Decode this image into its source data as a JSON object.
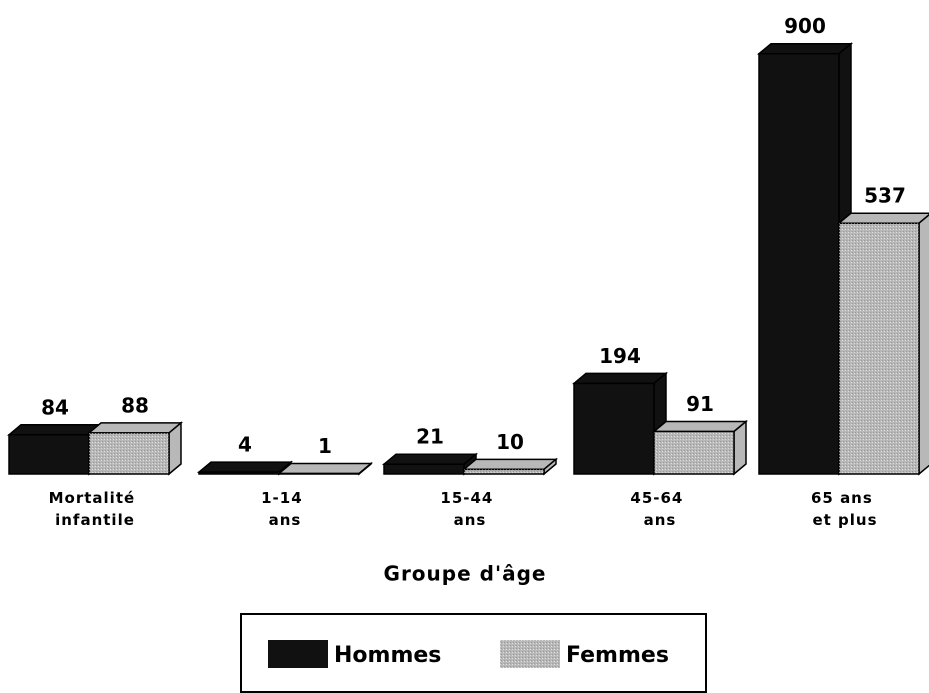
{
  "chart_data": {
    "type": "bar3d",
    "categories": [
      "Mortalité infantile",
      "1-14 ans",
      "15-44 ans",
      "45-64 ans",
      "65 ans et plus"
    ],
    "x_label": "Groupe d'âge",
    "series": [
      {
        "name": "Hommes",
        "color": "#111111",
        "values": [
          84,
          4,
          21,
          194,
          900
        ]
      },
      {
        "name": "Femmes",
        "color": "#b8b8b8",
        "values": [
          88,
          1,
          10,
          91,
          537
        ]
      }
    ]
  }
}
